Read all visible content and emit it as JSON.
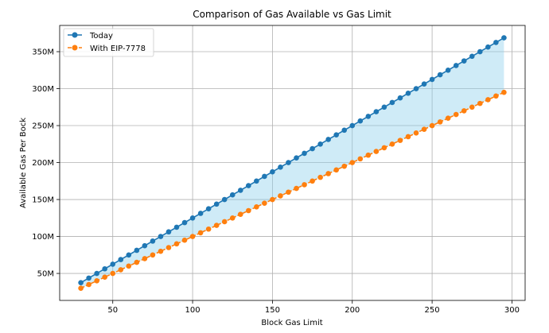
{
  "chart_data": {
    "type": "line",
    "title": "Comparison of Gas Available vs Gas Limit",
    "xlabel": "Block Gas Limit",
    "ylabel": "Available Gas Per Bock",
    "xlim": [
      16.75,
      308.25
    ],
    "ylim": [
      13500000,
      385500000
    ],
    "x_ticks": [
      50,
      100,
      150,
      200,
      250,
      300
    ],
    "x_tick_labels": [
      "50",
      "100",
      "150",
      "200",
      "250",
      "300"
    ],
    "y_ticks": [
      50000000,
      100000000,
      150000000,
      200000000,
      250000000,
      300000000,
      350000000
    ],
    "y_tick_labels": [
      "50M",
      "100M",
      "150M",
      "200M",
      "250M",
      "300M",
      "350M"
    ],
    "grid": true,
    "legend_position": "top-left",
    "x_start": 30,
    "x_step": 5,
    "x_end": 295,
    "series": [
      {
        "name": "Today",
        "color": "#1f77b4",
        "linestyle": "solid",
        "marker": "circle",
        "y_per_x": 1250000
      },
      {
        "name": "With EIP-7778",
        "color": "#ff7f0e",
        "linestyle": "dashed",
        "marker": "circle",
        "y_per_x": 1000000
      }
    ],
    "fill_between": {
      "series": [
        "Today",
        "With EIP-7778"
      ],
      "color": "#87ceeb",
      "opacity": 0.4
    }
  }
}
